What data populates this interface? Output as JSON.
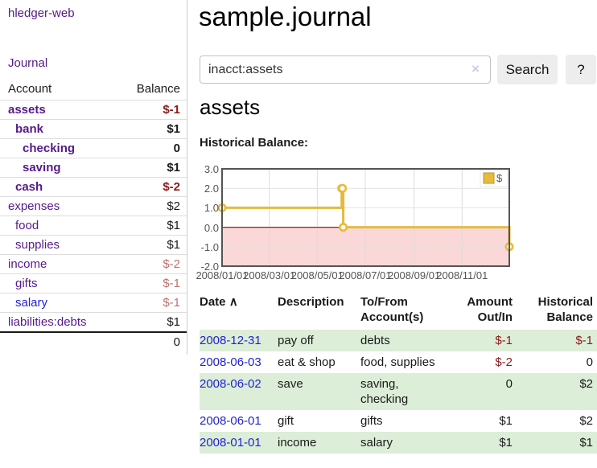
{
  "sidebar": {
    "app_link": "hledger-web",
    "journal_link": "Journal",
    "accounts": {
      "col_account": "Account",
      "col_balance": "Balance",
      "rows": [
        {
          "name": "assets",
          "level": 0,
          "bold": true,
          "balance": "$-1",
          "balance_style": "neg",
          "link_style": "purple"
        },
        {
          "name": "bank",
          "level": 1,
          "bold": true,
          "balance": "$1",
          "balance_style": "pos",
          "link_style": "purple"
        },
        {
          "name": "checking",
          "level": 2,
          "bold": true,
          "balance": "0",
          "balance_style": "pos",
          "link_style": "purple"
        },
        {
          "name": "saving",
          "level": 2,
          "bold": true,
          "balance": "$1",
          "balance_style": "pos",
          "link_style": "purple"
        },
        {
          "name": "cash",
          "level": 1,
          "bold": true,
          "balance": "$-2",
          "balance_style": "neg",
          "link_style": "purple"
        },
        {
          "name": "expenses",
          "level": 0,
          "bold": false,
          "balance": "$2",
          "balance_style": "pos",
          "link_style": "purple"
        },
        {
          "name": "food",
          "level": 1,
          "bold": false,
          "balance": "$1",
          "balance_style": "pos",
          "link_style": "purple"
        },
        {
          "name": "supplies",
          "level": 1,
          "bold": false,
          "balance": "$1",
          "balance_style": "pos",
          "link_style": "purple"
        },
        {
          "name": "income",
          "level": 0,
          "bold": false,
          "balance": "$-2",
          "balance_style": "neg-light",
          "link_style": "purple"
        },
        {
          "name": "gifts",
          "level": 1,
          "bold": false,
          "balance": "$-1",
          "balance_style": "neg-light",
          "link_style": "purple"
        },
        {
          "name": "salary",
          "level": 1,
          "bold": false,
          "balance": "$-1",
          "balance_style": "neg-light",
          "link_style": "blue"
        },
        {
          "name": "liabilities:debts",
          "level": 0,
          "bold": false,
          "balance": "$1",
          "balance_style": "pos",
          "link_style": "purple"
        }
      ],
      "total": "0"
    }
  },
  "main": {
    "title": "sample.journal",
    "search": {
      "value": "inacct:assets",
      "clear_icon": "×",
      "button_label": "Search",
      "help_label": "?"
    },
    "heading": "assets",
    "chart_title": "Historical Balance:"
  },
  "chart_data": {
    "type": "line",
    "step": true,
    "title": "Historical Balance",
    "series": [
      {
        "name": "$",
        "color": "#e6bb3c",
        "points": [
          {
            "date": "2008-01-01",
            "value": 1
          },
          {
            "date": "2008-06-01",
            "value": 2
          },
          {
            "date": "2008-06-02",
            "value": 2
          },
          {
            "date": "2008-06-03",
            "value": 0
          },
          {
            "date": "2008-12-31",
            "value": -1
          }
        ]
      }
    ],
    "x_range": [
      "2008-01-01",
      "2008-12-31"
    ],
    "x_ticks": [
      {
        "date": "2008-01-01",
        "label": "2008/01/01"
      },
      {
        "date": "2008-03-01",
        "label": "2008/03/01"
      },
      {
        "date": "2008-05-01",
        "label": "2008/05/01"
      },
      {
        "date": "2008-07-01",
        "label": "2008/07/01"
      },
      {
        "date": "2008-09-01",
        "label": "2008/09/01"
      },
      {
        "date": "2008-11-01",
        "label": "2008/11/01"
      }
    ],
    "y_ticks": [
      {
        "value": 3,
        "label": "3.0"
      },
      {
        "value": 2,
        "label": "2.0"
      },
      {
        "value": 1,
        "label": "1.0"
      },
      {
        "value": 0,
        "label": "0.0"
      },
      {
        "value": -1,
        "label": "-1.0"
      },
      {
        "value": -2,
        "label": "-2.0"
      }
    ],
    "ylim": [
      -2,
      3
    ],
    "grid": true,
    "legend": {
      "label": "$",
      "position": "top-right"
    },
    "negative_region_color": "#fbd7d7",
    "zero_line_color": "#9c1b1b",
    "border_color": "#545454"
  },
  "register": {
    "headers": [
      "Date",
      "Description",
      "To/From Account(s)",
      "Amount Out/In",
      "Historical Balance"
    ],
    "sort_icon": "∧",
    "rows": [
      {
        "date": "2008-12-31",
        "description": "pay off",
        "accounts": "debts",
        "amount": "$-1",
        "amount_neg": true,
        "balance": "$-1",
        "balance_neg": true
      },
      {
        "date": "2008-06-03",
        "description": "eat & shop",
        "accounts": "food, supplies",
        "amount": "$-2",
        "amount_neg": true,
        "balance": "0",
        "balance_neg": false
      },
      {
        "date": "2008-06-02",
        "description": "save",
        "accounts": "saving, checking",
        "amount": "0",
        "amount_neg": false,
        "balance": "$2",
        "balance_neg": false
      },
      {
        "date": "2008-06-01",
        "description": "gift",
        "accounts": "gifts",
        "amount": "$1",
        "amount_neg": false,
        "balance": "$2",
        "balance_neg": false
      },
      {
        "date": "2008-01-01",
        "description": "income",
        "accounts": "salary",
        "amount": "$1",
        "amount_neg": false,
        "balance": "$1",
        "balance_neg": false
      }
    ]
  }
}
